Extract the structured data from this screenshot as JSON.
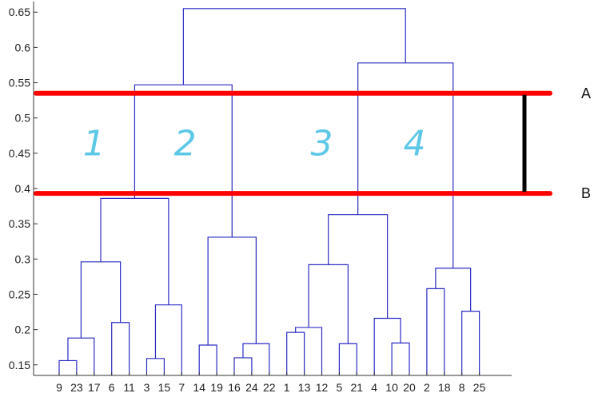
{
  "chart_data": {
    "type": "dendrogram",
    "y_ticks": [
      "0.15",
      "0.2",
      "0.25",
      "0.3",
      "0.35",
      "0.4",
      "0.45",
      "0.5",
      "0.55",
      "0.6",
      "0.65"
    ],
    "ylim": [
      0.135,
      0.665
    ],
    "grid": false,
    "leaves": [
      "9",
      "23",
      "17",
      "6",
      "11",
      "3",
      "15",
      "7",
      "14",
      "19",
      "16",
      "24",
      "22",
      "1",
      "13",
      "12",
      "5",
      "21",
      "4",
      "10",
      "20",
      "2",
      "18",
      "8",
      "25"
    ],
    "merges": [
      {
        "left": "L9",
        "right": "L23",
        "height": 0.156
      },
      {
        "left": "M0",
        "right": "L17",
        "height": 0.188
      },
      {
        "left": "L6",
        "right": "L11",
        "height": 0.21
      },
      {
        "left": "M1",
        "right": "M2",
        "height": 0.296
      },
      {
        "left": "L3",
        "right": "L15",
        "height": 0.159
      },
      {
        "left": "M4",
        "right": "L7",
        "height": 0.235
      },
      {
        "left": "M3",
        "right": "M5",
        "height": 0.386
      },
      {
        "left": "L14",
        "right": "L19",
        "height": 0.178
      },
      {
        "left": "L16",
        "right": "L24",
        "height": 0.16
      },
      {
        "left": "M8",
        "right": "L22",
        "height": 0.18
      },
      {
        "left": "M7",
        "right": "M9",
        "height": 0.331
      },
      {
        "left": "M6",
        "right": "M10",
        "height": 0.547
      },
      {
        "left": "L1",
        "right": "L13",
        "height": 0.196
      },
      {
        "left": "M12",
        "right": "L12",
        "height": 0.203
      },
      {
        "left": "L5",
        "right": "L21",
        "height": 0.18
      },
      {
        "left": "M13",
        "right": "M14",
        "height": 0.292
      },
      {
        "left": "L10",
        "right": "L20",
        "height": 0.181
      },
      {
        "left": "L4",
        "right": "M16",
        "height": 0.216
      },
      {
        "left": "M15",
        "right": "M17",
        "height": 0.363
      },
      {
        "left": "L2",
        "right": "L18",
        "height": 0.258
      },
      {
        "left": "L8",
        "right": "L25",
        "height": 0.226
      },
      {
        "left": "M19",
        "right": "M20",
        "height": 0.287
      },
      {
        "left": "M18",
        "right": "M21",
        "height": 0.578
      },
      {
        "left": "M11",
        "right": "M22",
        "height": 0.655
      }
    ],
    "cut_lines": [
      {
        "label": "A",
        "height": 0.535
      },
      {
        "label": "B",
        "height": 0.393
      }
    ],
    "cluster_labels": [
      {
        "text": "1",
        "x_after_leaf": 2.0,
        "height": 0.465
      },
      {
        "text": "2",
        "x_after_leaf": 7.2,
        "height": 0.465
      },
      {
        "text": "3",
        "x_after_leaf": 15.0,
        "height": 0.465
      },
      {
        "text": "4",
        "x_after_leaf": 20.3,
        "height": 0.465
      }
    ],
    "colors": {
      "tree": "#2b2bc4",
      "axis": "#333333",
      "cut_line": "#ff0000",
      "bracket": "#000000",
      "cluster_label": "#5cc8e6"
    }
  }
}
